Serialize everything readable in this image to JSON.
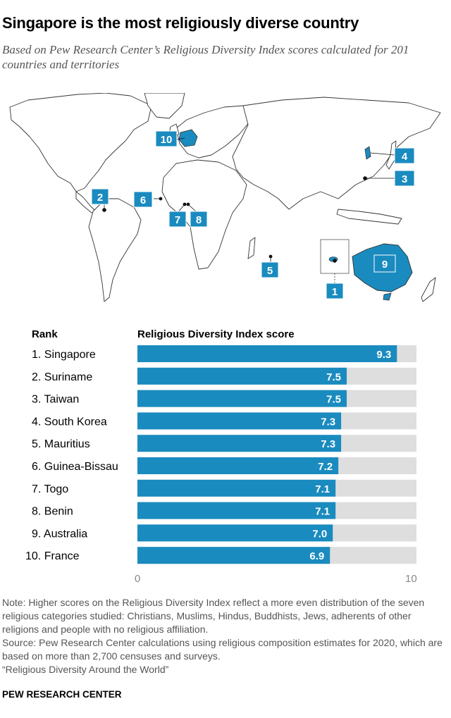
{
  "title": "Singapore is the most religiously diverse country",
  "subtitle": "Based on Pew Research Center’s Religious Diversity Index scores calculated for 201 countries and territories",
  "map": {
    "markers": [
      "1",
      "2",
      "3",
      "4",
      "5",
      "6",
      "7",
      "8",
      "9",
      "10"
    ]
  },
  "headers": {
    "rank": "Rank",
    "score": "Religious Diversity Index score"
  },
  "chart_data": {
    "type": "bar",
    "orientation": "horizontal",
    "categories": [
      "1. Singapore",
      "2. Suriname",
      "3. Taiwan",
      "4. South Korea",
      "5. Mauritius",
      "6. Guinea-Bissau",
      "7. Togo",
      "8. Benin",
      "9. Australia",
      "10. France"
    ],
    "values": [
      9.3,
      7.5,
      7.5,
      7.3,
      7.3,
      7.2,
      7.1,
      7.1,
      7.0,
      6.9
    ],
    "value_labels": [
      "9.3",
      "7.5",
      "7.5",
      "7.3",
      "7.3",
      "7.2",
      "7.1",
      "7.1",
      "7.0",
      "6.9"
    ],
    "xlim": [
      0,
      10
    ],
    "xticks": [
      "0",
      "10"
    ],
    "bar_color": "#1a8bbf",
    "track_color": "#dedede"
  },
  "note": "Note: Higher scores on the Religious Diversity Index reflect a more even distribution of the seven religious categories studied: Christians, Muslims, Hindus, Buddhists, Jews, adherents of other religions and people with no religious affiliation.",
  "source": "Source: Pew Research Center calculations using religious composition estimates for 2020, which are based on more than 2,700 censuses and surveys.",
  "report": "“Religious Diversity Around the World”",
  "footer": "PEW RESEARCH CENTER",
  "colors": {
    "accent": "#1a8bbf",
    "land_stroke": "#333333"
  }
}
